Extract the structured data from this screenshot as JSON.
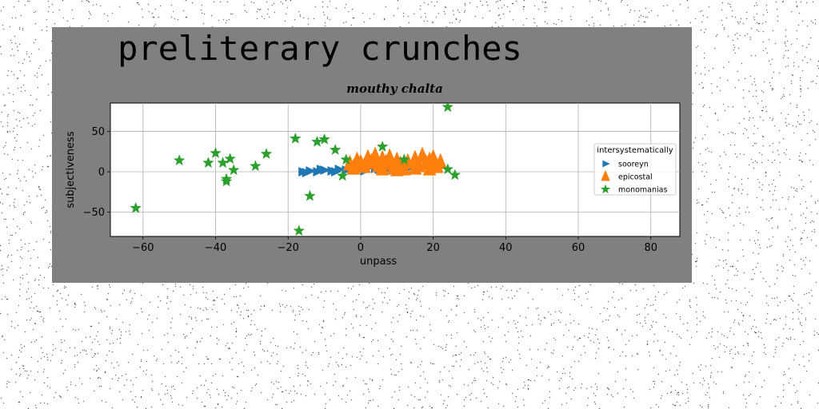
{
  "chart_data": {
    "type": "scatter",
    "title": "preliterary crunches",
    "subtitle": "mouthy chalta",
    "xlabel": "unpass",
    "ylabel": "subjectiveness",
    "xlim": [
      -69,
      88
    ],
    "ylim": [
      -80,
      85
    ],
    "xticks": [
      -60,
      -40,
      -20,
      0,
      20,
      40,
      60,
      80
    ],
    "yticks": [
      -50,
      0,
      50
    ],
    "grid": true,
    "legend": {
      "title": "intersystematically",
      "placement": "right"
    },
    "series": [
      {
        "name": "sooreyn",
        "marker": "triangle-right",
        "color": "#1f77b4",
        "points": [
          [
            -16,
            0
          ],
          [
            -14,
            1
          ],
          [
            -12,
            0
          ],
          [
            -10,
            2
          ],
          [
            -8,
            1
          ],
          [
            -6,
            3
          ],
          [
            -4,
            2
          ],
          [
            -2,
            4
          ],
          [
            0,
            3
          ],
          [
            2,
            5
          ],
          [
            4,
            4
          ],
          [
            6,
            6
          ],
          [
            8,
            5
          ],
          [
            10,
            7
          ],
          [
            12,
            5
          ],
          [
            14,
            8
          ],
          [
            -15,
            -1
          ],
          [
            -11,
            3
          ],
          [
            -7,
            0
          ],
          [
            -3,
            5
          ],
          [
            1,
            1
          ],
          [
            5,
            3
          ],
          [
            9,
            2
          ],
          [
            13,
            4
          ]
        ]
      },
      {
        "name": "epicostal",
        "marker": "triangle-up",
        "color": "#ff7f0e",
        "points": [
          [
            -3,
            8
          ],
          [
            -1,
            12
          ],
          [
            1,
            5
          ],
          [
            2,
            15
          ],
          [
            3,
            10
          ],
          [
            4,
            18
          ],
          [
            5,
            6
          ],
          [
            6,
            14
          ],
          [
            7,
            9
          ],
          [
            8,
            16
          ],
          [
            9,
            4
          ],
          [
            10,
            12
          ],
          [
            11,
            7
          ],
          [
            12,
            2
          ],
          [
            13,
            10
          ],
          [
            15,
            14
          ],
          [
            16,
            6
          ],
          [
            17,
            18
          ],
          [
            18,
            9
          ],
          [
            19,
            12
          ],
          [
            20,
            15
          ],
          [
            21,
            5
          ],
          [
            22,
            10
          ],
          [
            -2,
            3
          ],
          [
            0,
            9
          ],
          [
            6,
            2
          ],
          [
            10,
            1
          ],
          [
            15,
            3
          ],
          [
            19,
            2
          ]
        ]
      },
      {
        "name": "monomanias",
        "marker": "star",
        "color": "#2ca02c",
        "points": [
          [
            -62,
            -45
          ],
          [
            -50,
            14
          ],
          [
            -42,
            11
          ],
          [
            -40,
            23
          ],
          [
            -38,
            11
          ],
          [
            -37,
            -12
          ],
          [
            -37,
            -9
          ],
          [
            -36,
            16
          ],
          [
            -35,
            2
          ],
          [
            -29,
            7
          ],
          [
            -26,
            22
          ],
          [
            -18,
            41
          ],
          [
            -17,
            -73
          ],
          [
            -14,
            -30
          ],
          [
            -12,
            37
          ],
          [
            -10,
            40
          ],
          [
            -7,
            27
          ],
          [
            -5,
            -5
          ],
          [
            -4,
            15
          ],
          [
            6,
            31
          ],
          [
            12,
            15
          ],
          [
            24,
            80
          ],
          [
            24,
            3
          ],
          [
            26,
            -4
          ]
        ]
      }
    ]
  }
}
